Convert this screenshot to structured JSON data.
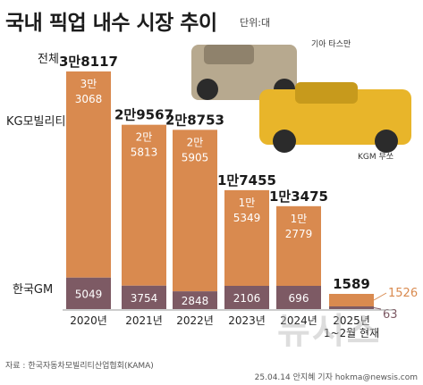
{
  "title": "국내 픽업 내수 시장 추이",
  "unit": "단위:대",
  "source": "자료 : 한국자동차모빌리티산업협회(KAMA)",
  "credit": "25.04.14 안지혜 기자 hokma@newsis.com",
  "watermark": "뉴시스",
  "photo_captions": [
    "기아 타스만",
    "KGM 무쏘"
  ],
  "colors": {
    "total_bar": "#d98a4f",
    "kgm_bar": "#d98a4f",
    "gm_bar": "#7d5a64",
    "total_label": "#1a1a1a",
    "kgm_label": "#ffffff",
    "gm_label": "#ffffff",
    "callout_kgm": "#d98a4f",
    "callout_gm": "#7d5a64"
  },
  "chart_data": {
    "type": "bar",
    "stacked": true,
    "categories": [
      "2020년",
      "2021년",
      "2022년",
      "2023년",
      "2024년",
      "2025년\n1~2월 현재"
    ],
    "series": [
      {
        "name": "한국GM",
        "values": [
          5049,
          3754,
          2848,
          2106,
          696,
          63
        ]
      },
      {
        "name": "KG모빌리티",
        "values": [
          33068,
          25813,
          25905,
          15349,
          12779,
          1526
        ]
      }
    ],
    "totals": [
      38117,
      29567,
      28753,
      17455,
      13475,
      1589
    ],
    "total_labels": [
      "3만8117",
      "2만9567",
      "2만8753",
      "1만7455",
      "1만3475",
      "1589"
    ],
    "kgm_labels": [
      [
        "3만",
        "3068"
      ],
      [
        "2만",
        "5813"
      ],
      [
        "2만",
        "5905"
      ],
      [
        "1만",
        "5349"
      ],
      [
        "1만",
        "2779"
      ],
      [
        "1526"
      ]
    ],
    "gm_labels": [
      "5049",
      "3754",
      "2848",
      "2106",
      "696",
      "63"
    ],
    "legend_total": "전체",
    "ylim": [
      0,
      38117
    ]
  }
}
